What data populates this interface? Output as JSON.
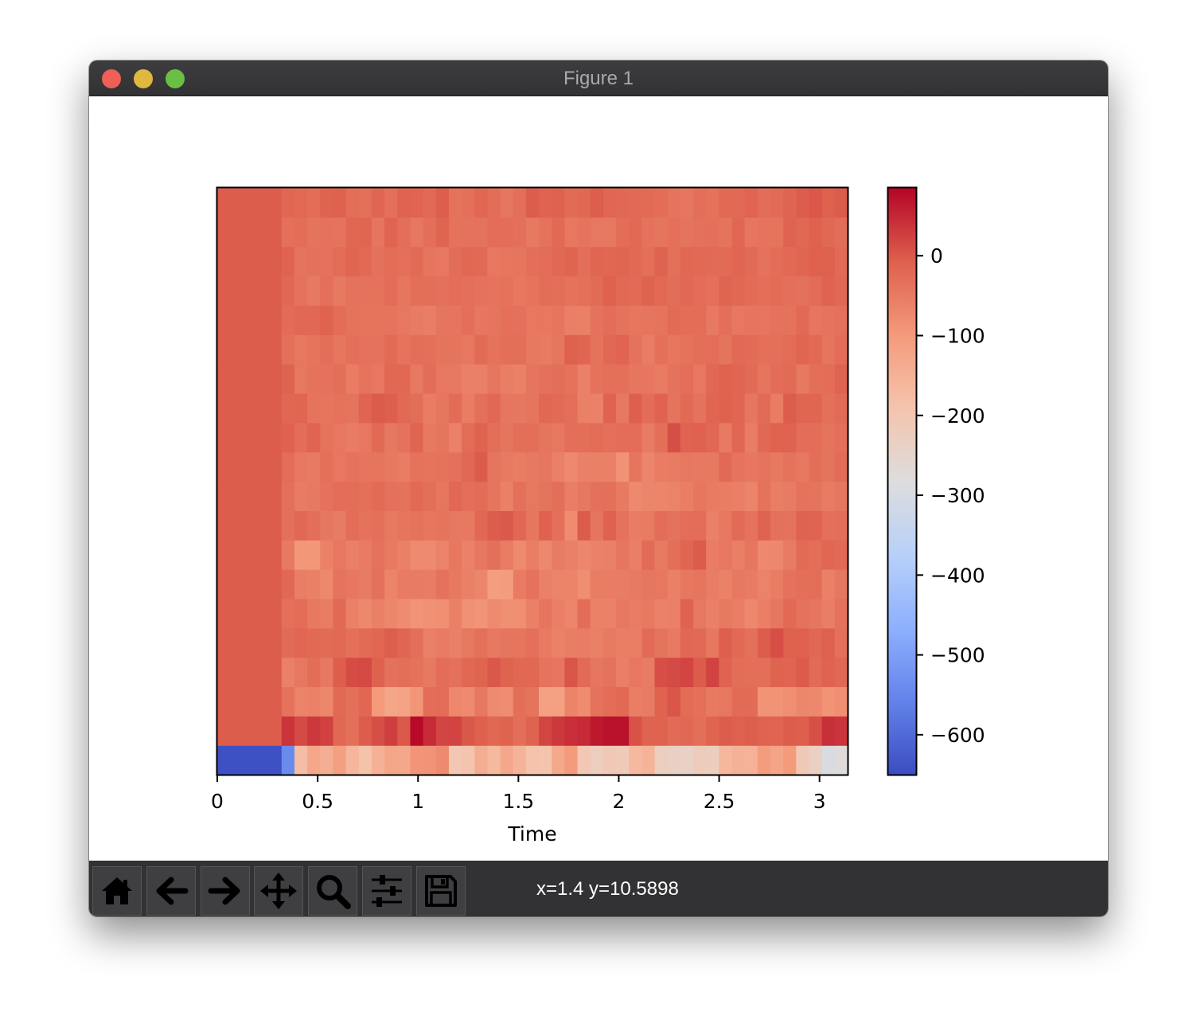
{
  "window": {
    "title": "Figure 1",
    "buttons": {
      "close_color": "#ee5f56",
      "minimize_color": "#e0b83f",
      "zoom_color": "#6bbf45"
    }
  },
  "toolbar": {
    "tools": [
      {
        "name": "home",
        "icon": "home-icon"
      },
      {
        "name": "back",
        "icon": "arrow-left-icon"
      },
      {
        "name": "forward",
        "icon": "arrow-right-icon"
      },
      {
        "name": "pan",
        "icon": "move-icon"
      },
      {
        "name": "zoom",
        "icon": "magnifier-icon"
      },
      {
        "name": "configure-subplots",
        "icon": "sliders-icon"
      },
      {
        "name": "save",
        "icon": "floppy-disk-icon"
      }
    ],
    "coordinates": "x=1.4 y=10.5898"
  },
  "chart_data": {
    "type": "heatmap",
    "title": "",
    "xlabel": "Time",
    "ylabel": "",
    "colormap": "coolwarm",
    "x_range": [
      0,
      3.14
    ],
    "x_ticks": [
      0,
      0.5,
      1,
      1.5,
      2,
      2.5,
      3
    ],
    "x_tick_labels": [
      "0",
      "0.5",
      "1",
      "1.5",
      "2",
      "2.5",
      "3"
    ],
    "rows": 20,
    "cols": 49,
    "colorbar": {
      "range": [
        -650,
        85
      ],
      "ticks": [
        0,
        -100,
        -200,
        -300,
        -400,
        -500,
        -600
      ],
      "tick_labels": [
        "0",
        "−100",
        "−200",
        "−300",
        "−400",
        "−500",
        "−600"
      ]
    },
    "values": [
      [
        -642,
        -642,
        -642,
        -642,
        -642,
        -540,
        -176,
        -128,
        -142,
        -110,
        -160,
        -186,
        -148,
        -124,
        -128,
        -90,
        -88,
        -75,
        -202,
        -192,
        -140,
        -166,
        -128,
        -156,
        -188,
        -190,
        -130,
        -100,
        -202,
        -222,
        -206,
        -212,
        -166,
        -154,
        -226,
        -236,
        -238,
        -220,
        -226,
        -164,
        -150,
        -152,
        -104,
        -122,
        -100,
        -208,
        -232,
        -294,
        -276
      ],
      [
        -4,
        -4,
        -4,
        -4,
        -4,
        37,
        15,
        32,
        24,
        -21,
        -33,
        -4,
        10,
        26,
        0,
        79,
        46,
        20,
        21,
        1,
        -7,
        -19,
        -13,
        -30,
        -12,
        19,
        32,
        42,
        47,
        65,
        72,
        71,
        7,
        -13,
        -11,
        -24,
        -21,
        -30,
        -15,
        -4,
        -8,
        -5,
        -12,
        -14,
        -4,
        -6,
        9,
        41,
        37
      ],
      [
        -4,
        -4,
        -4,
        -4,
        -4,
        -35,
        -62,
        -61,
        -69,
        -22,
        -33,
        -18,
        -98,
        -124,
        -118,
        -92,
        -28,
        -26,
        -71,
        -74,
        -46,
        -74,
        -78,
        -30,
        -38,
        -113,
        -113,
        -64,
        -76,
        -36,
        -27,
        -23,
        -55,
        -50,
        -11,
        4,
        -26,
        -32,
        -48,
        -45,
        -24,
        -26,
        -87,
        -87,
        -79,
        -68,
        -70,
        -87,
        -81
      ],
      [
        -4,
        -4,
        -4,
        -4,
        -4,
        -58,
        -45,
        -29,
        -47,
        -5,
        13,
        16,
        -10,
        -34,
        -31,
        -35,
        -47,
        -28,
        -34,
        -19,
        -15,
        1,
        -13,
        -19,
        -19,
        -39,
        -42,
        4,
        -24,
        -42,
        -35,
        -56,
        -44,
        -50,
        11,
        15,
        20,
        -2,
        22,
        -11,
        -29,
        -30,
        -30,
        -13,
        -14,
        -2,
        -24,
        -12,
        -20
      ],
      [
        -4,
        -4,
        -4,
        -4,
        -4,
        -25,
        -18,
        -23,
        -24,
        -22,
        -33,
        -25,
        -18,
        -5,
        -17,
        -31,
        -58,
        -49,
        -58,
        -45,
        -33,
        -46,
        -40,
        -40,
        -32,
        -48,
        -60,
        -54,
        -52,
        -57,
        -48,
        -55,
        -54,
        -24,
        -38,
        -48,
        -20,
        -22,
        -43,
        -6,
        -23,
        -33,
        -4,
        11,
        -8,
        -7,
        -20,
        -8,
        -33
      ],
      [
        -4,
        -4,
        -4,
        -4,
        -4,
        -32,
        -27,
        -46,
        -51,
        -22,
        -59,
        -70,
        -57,
        -68,
        -76,
        -88,
        -85,
        -81,
        -59,
        -84,
        -90,
        -73,
        -83,
        -80,
        -57,
        -40,
        -56,
        -65,
        -27,
        -61,
        -61,
        -44,
        -51,
        -47,
        -60,
        -58,
        -12,
        -45,
        -58,
        -46,
        -55,
        -70,
        -56,
        -42,
        -22,
        -35,
        -42,
        -54,
        -35
      ],
      [
        -4,
        -4,
        -4,
        -4,
        -4,
        -20,
        -55,
        -59,
        -70,
        -38,
        -44,
        -50,
        -34,
        -64,
        -49,
        -50,
        -52,
        -36,
        -47,
        -59,
        -67,
        -108,
        -105,
        -49,
        -35,
        -58,
        -64,
        -64,
        -79,
        -53,
        -51,
        -52,
        -48,
        -42,
        -43,
        -59,
        -43,
        -40,
        -52,
        -60,
        -46,
        -50,
        -63,
        -51,
        -36,
        -31,
        -29,
        -59,
        -45
      ],
      [
        -4,
        -4,
        -4,
        -4,
        -4,
        -48,
        -94,
        -94,
        -60,
        -43,
        -58,
        -49,
        -36,
        -48,
        -57,
        -73,
        -74,
        -62,
        -43,
        -60,
        -44,
        -32,
        -51,
        -75,
        -55,
        -70,
        -50,
        -58,
        -68,
        -60,
        -58,
        -42,
        -56,
        -25,
        -48,
        -30,
        -17,
        -3,
        -51,
        -44,
        -56,
        -41,
        -72,
        -71,
        -50,
        -24,
        -30,
        -18,
        -22
      ],
      [
        -4,
        -4,
        -4,
        -4,
        -4,
        -33,
        -20,
        -30,
        -45,
        -50,
        -27,
        -37,
        -33,
        -47,
        -40,
        -37,
        -41,
        -38,
        -44,
        -47,
        -19,
        -4,
        0,
        -18,
        -41,
        -9,
        -33,
        -76,
        -3,
        -40,
        -10,
        -36,
        -53,
        -49,
        -28,
        -36,
        -27,
        -28,
        -59,
        -43,
        -24,
        -36,
        -13,
        -34,
        -35,
        -13,
        -14,
        -32,
        -30
      ],
      [
        -4,
        -4,
        -4,
        -4,
        -4,
        -32,
        -50,
        -47,
        -36,
        -28,
        -29,
        -33,
        -24,
        -34,
        -35,
        -23,
        -30,
        -41,
        -20,
        -31,
        -26,
        -40,
        -59,
        -33,
        -45,
        -38,
        -31,
        -54,
        -44,
        -34,
        -33,
        -48,
        -72,
        -67,
        -65,
        -62,
        -55,
        -41,
        -49,
        -51,
        -56,
        -64,
        -35,
        -54,
        -50,
        -37,
        -38,
        -49,
        -41
      ],
      [
        -4,
        -4,
        -4,
        -4,
        -4,
        -27,
        -44,
        -48,
        -32,
        -43,
        -36,
        -40,
        -40,
        -46,
        -51,
        -35,
        -39,
        -37,
        -34,
        -21,
        -3,
        -40,
        -48,
        -53,
        -46,
        -42,
        -58,
        -72,
        -58,
        -59,
        -59,
        -86,
        -40,
        -66,
        -51,
        -49,
        -44,
        -47,
        -46,
        -23,
        -39,
        -44,
        -39,
        -47,
        -37,
        -43,
        -30,
        -38,
        -26
      ],
      [
        -4,
        -4,
        -4,
        -4,
        -4,
        -9,
        -28,
        -14,
        -37,
        -43,
        -52,
        -43,
        -23,
        -45,
        -36,
        -15,
        -46,
        -40,
        -58,
        -26,
        -11,
        -30,
        -40,
        -30,
        -30,
        -40,
        -45,
        -30,
        -30,
        -26,
        -32,
        -28,
        -28,
        -50,
        -31,
        10,
        -12,
        -9,
        -20,
        -48,
        -18,
        -52,
        -21,
        -11,
        -12,
        -28,
        -27,
        -38,
        -32
      ],
      [
        -4,
        -4,
        -4,
        -4,
        -4,
        -18,
        -16,
        -39,
        -40,
        -35,
        -38,
        -14,
        -3,
        -6,
        -22,
        -29,
        -51,
        -41,
        -26,
        -51,
        -33,
        -20,
        -42,
        -45,
        -40,
        -21,
        -24,
        -31,
        -57,
        -60,
        -12,
        -46,
        -6,
        -28,
        -12,
        -38,
        -23,
        -35,
        -16,
        -10,
        -17,
        -42,
        -25,
        -51,
        -4,
        -16,
        -16,
        -33,
        -24
      ],
      [
        -4,
        -4,
        -4,
        -4,
        -4,
        -13,
        -45,
        -37,
        -37,
        -30,
        -51,
        -39,
        -44,
        -19,
        -19,
        -46,
        -28,
        -43,
        -46,
        -58,
        -58,
        -41,
        -54,
        -61,
        -40,
        -34,
        -30,
        -35,
        -58,
        -37,
        -33,
        -33,
        -41,
        -44,
        -49,
        -35,
        -28,
        -43,
        -20,
        -11,
        -17,
        -24,
        -40,
        -28,
        -24,
        -46,
        -30,
        -27,
        -13
      ],
      [
        -4,
        -4,
        -4,
        -4,
        -4,
        -33,
        -43,
        -38,
        -30,
        -41,
        -32,
        -36,
        -37,
        -24,
        -39,
        -31,
        -33,
        -38,
        -38,
        -43,
        -25,
        -37,
        -31,
        -30,
        -47,
        -49,
        -41,
        -8,
        -17,
        -35,
        -21,
        -14,
        -35,
        -51,
        -33,
        -41,
        -37,
        -31,
        -28,
        -38,
        -22,
        -26,
        -32,
        -32,
        -26,
        -17,
        -23,
        -40,
        -28
      ],
      [
        -4,
        -4,
        -4,
        -4,
        -4,
        -26,
        -20,
        -19,
        -11,
        -27,
        -35,
        -39,
        -39,
        -38,
        -43,
        -50,
        -55,
        -40,
        -40,
        -30,
        -44,
        -40,
        -33,
        -34,
        -43,
        -43,
        -40,
        -56,
        -57,
        -35,
        -28,
        -35,
        -41,
        -40,
        -39,
        -24,
        -29,
        -27,
        -46,
        -31,
        -44,
        -40,
        -42,
        -35,
        -37,
        -22,
        -42,
        -39,
        -34
      ],
      [
        -4,
        -4,
        -4,
        -4,
        -4,
        -21,
        -36,
        -46,
        -33,
        -47,
        -37,
        -35,
        -35,
        -26,
        -41,
        -31,
        -30,
        -34,
        -28,
        -32,
        -36,
        -39,
        -35,
        -43,
        -39,
        -29,
        -30,
        -35,
        -32,
        -25,
        -9,
        -23,
        -24,
        -13,
        -22,
        -29,
        -20,
        -27,
        -33,
        -15,
        -19,
        -26,
        -30,
        -26,
        -32,
        -34,
        -26,
        -12,
        -19
      ],
      [
        -4,
        -4,
        -4,
        -4,
        -4,
        -12,
        -39,
        -34,
        -37,
        -26,
        -16,
        -23,
        -34,
        -27,
        -32,
        -25,
        -40,
        -44,
        -29,
        -21,
        -22,
        -43,
        -41,
        -40,
        -31,
        -28,
        -21,
        -15,
        -30,
        -16,
        -18,
        -16,
        -23,
        -30,
        -13,
        -33,
        -19,
        -22,
        -25,
        -25,
        -17,
        -24,
        -36,
        -27,
        -23,
        -16,
        -7,
        -8,
        -25
      ],
      [
        -4,
        -4,
        -4,
        -4,
        -4,
        -33,
        -27,
        -38,
        -36,
        -39,
        -18,
        -17,
        -40,
        -15,
        -30,
        -44,
        -31,
        -15,
        -35,
        -35,
        -36,
        -28,
        -28,
        -33,
        -46,
        -37,
        -23,
        -43,
        -39,
        -44,
        -45,
        -27,
        -23,
        -37,
        -40,
        -32,
        -38,
        -34,
        -32,
        -39,
        -18,
        -42,
        -39,
        -39,
        -12,
        -19,
        -10,
        -21,
        -29
      ],
      [
        -4,
        -4,
        -4,
        -4,
        -4,
        -18,
        -23,
        -27,
        -13,
        -10,
        -29,
        -32,
        -16,
        -33,
        -11,
        -14,
        -23,
        -5,
        -37,
        -33,
        -18,
        -27,
        -41,
        -30,
        -4,
        -12,
        -10,
        -25,
        -21,
        -5,
        -18,
        -20,
        -23,
        -25,
        -27,
        -38,
        -42,
        -31,
        -35,
        -22,
        -22,
        -14,
        -28,
        -24,
        -15,
        -4,
        2,
        -8,
        -3
      ]
    ]
  }
}
